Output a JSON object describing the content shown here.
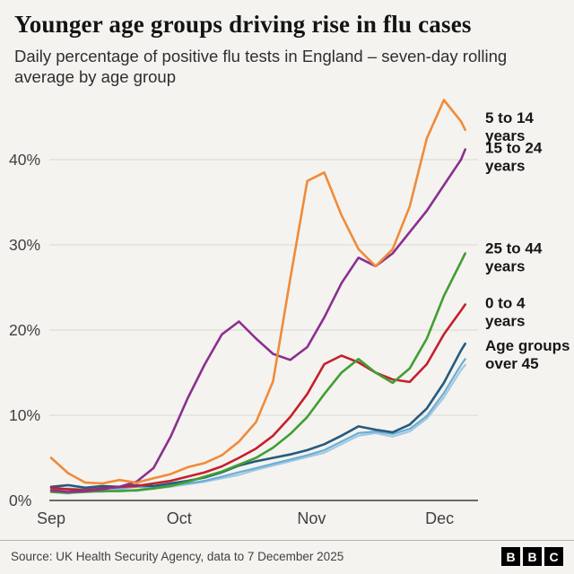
{
  "header": {
    "title": "Younger age groups driving rise in flu cases",
    "subtitle": "Daily percentage of positive flu tests in England – seven-day rolling average by age group"
  },
  "footer": {
    "source": "Source: UK Health Security Agency, data to 7 December 2025",
    "logo_letters": [
      "B",
      "B",
      "C"
    ]
  },
  "chart_data": {
    "type": "line",
    "title": "Daily percentage of positive flu tests in England, seven-day rolling average by age group",
    "x_unit": "days since 1 September",
    "xlim": [
      0,
      100
    ],
    "ylim": [
      0,
      48
    ],
    "y_unit": "%",
    "grid": "horizontal",
    "legend_position": "right-of-line-ends",
    "x": [
      0,
      4,
      8,
      12,
      16,
      20,
      24,
      28,
      32,
      36,
      40,
      44,
      48,
      52,
      56,
      60,
      64,
      68,
      72,
      76,
      80,
      84,
      88,
      92,
      96,
      97
    ],
    "x_ticks": [
      {
        "label": "Sep",
        "day": 0
      },
      {
        "label": "Oct",
        "day": 30
      },
      {
        "label": "Nov",
        "day": 61
      },
      {
        "label": "Dec",
        "day": 91
      }
    ],
    "y_ticks": [
      0,
      10,
      20,
      30,
      40
    ],
    "series": [
      {
        "id": "over-45-c",
        "name": "Age groups over 45",
        "color": "#a2c8e0",
        "values": [
          1.0,
          0.8,
          1.2,
          1.0,
          1.3,
          1.1,
          1.4,
          1.6,
          1.9,
          2.2,
          2.6,
          3.0,
          3.6,
          4.1,
          4.6,
          5.1,
          5.6,
          6.6,
          7.6,
          7.9,
          7.5,
          8.1,
          9.6,
          12.1,
          15.3,
          15.9
        ]
      },
      {
        "id": "over-45-b",
        "name": "Age groups over 45",
        "color": "#6aaed6",
        "values": [
          1.2,
          1.4,
          1.3,
          1.5,
          1.4,
          1.6,
          1.5,
          1.8,
          2.0,
          2.3,
          2.8,
          3.3,
          3.8,
          4.3,
          4.8,
          5.3,
          5.9,
          6.9,
          7.9,
          8.1,
          7.8,
          8.4,
          9.9,
          12.6,
          15.9,
          16.6
        ]
      },
      {
        "id": "over-45",
        "name": "Age groups over 45",
        "color": "#265a7c",
        "label_lines": [
          "Age groups",
          "over 45"
        ],
        "values": [
          1.6,
          1.8,
          1.5,
          1.7,
          1.6,
          1.8,
          1.7,
          2.0,
          2.3,
          2.7,
          3.3,
          4.1,
          4.6,
          5.0,
          5.4,
          5.9,
          6.6,
          7.6,
          8.7,
          8.3,
          8.0,
          8.9,
          10.8,
          13.8,
          17.6,
          18.4
        ]
      },
      {
        "id": "0-4",
        "name": "0 to 4 years",
        "color": "#c4202c",
        "label_lines": [
          "0 to 4",
          "years"
        ],
        "values": [
          1.5,
          1.3,
          1.2,
          1.4,
          1.6,
          1.7,
          2.0,
          2.3,
          2.8,
          3.3,
          4.0,
          5.0,
          6.1,
          7.6,
          9.8,
          12.5,
          16.0,
          17.0,
          16.2,
          15.0,
          14.2,
          13.9,
          16.0,
          19.5,
          22.3,
          23.0
        ]
      },
      {
        "id": "25-44",
        "name": "25 to 44 years",
        "color": "#429e35",
        "label_lines": [
          "25 to 44",
          "years"
        ],
        "values": [
          1.0,
          0.9,
          1.0,
          1.1,
          1.1,
          1.2,
          1.4,
          1.7,
          2.2,
          2.8,
          3.4,
          4.2,
          5.0,
          6.2,
          7.8,
          9.8,
          12.5,
          15.0,
          16.6,
          15.0,
          13.8,
          15.5,
          19.0,
          24.0,
          28.0,
          29.0
        ]
      },
      {
        "id": "15-24",
        "name": "15 to 24 years",
        "color": "#8b2f90",
        "label_lines": [
          "15 to 24",
          "years"
        ],
        "values": [
          1.2,
          1.0,
          1.1,
          1.3,
          1.6,
          2.2,
          3.8,
          7.5,
          12.0,
          16.0,
          19.5,
          21.0,
          19.0,
          17.2,
          16.5,
          18.0,
          21.5,
          25.5,
          28.5,
          27.5,
          29.0,
          31.5,
          34.0,
          37.0,
          40.0,
          41.2
        ]
      },
      {
        "id": "5-14",
        "name": "5 to 14 years",
        "color": "#ef8b3a",
        "label_lines": [
          "5 to 14",
          "years"
        ],
        "values": [
          5.0,
          3.2,
          2.1,
          2.0,
          2.4,
          2.1,
          2.6,
          3.1,
          3.9,
          4.4,
          5.3,
          6.9,
          9.2,
          14.0,
          26.0,
          37.5,
          38.5,
          33.5,
          29.5,
          27.5,
          29.5,
          34.5,
          42.5,
          47.0,
          44.5,
          43.5
        ]
      }
    ]
  }
}
